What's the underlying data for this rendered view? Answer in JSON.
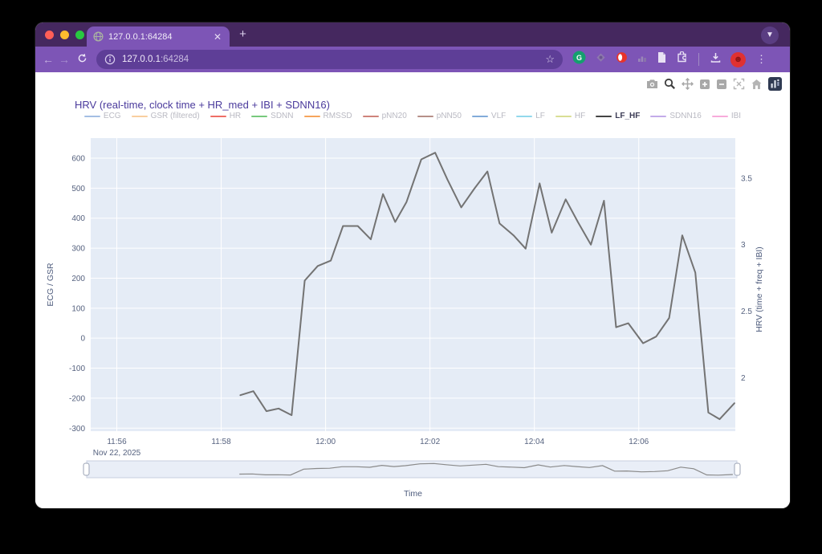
{
  "theme": {
    "chrome_dark": "#45285f",
    "chrome_light": "#7d55b6",
    "url_pill": "#5e3e97",
    "plot_bg": "#e5ecf6",
    "trace_color": "#737373",
    "title_color": "#4a3a9c",
    "axis_text_color": "#56627f",
    "traffic_lights": [
      "#ff5f57",
      "#febc2e",
      "#28c840"
    ]
  },
  "browser": {
    "tab_title": "127.0.0.1:64284",
    "url_host": "127.0.0.1",
    "url_port": ":64284",
    "window_buttons": [
      "close",
      "minimize",
      "zoom"
    ],
    "nav_icons": [
      "back-arrow",
      "forward-arrow",
      "reload"
    ],
    "url_icons": [
      "info-icon",
      "bookmark-star-icon"
    ],
    "extension_icons": [
      "grammarly-icon",
      "diamond-icon",
      "pin-icon",
      "chart-icon",
      "document-icon",
      "extensions-puzzle-icon"
    ],
    "action_icons": [
      "download-icon",
      "profile-avatar",
      "menu-kebab-icon"
    ],
    "tab_icons": [
      "globe-favicon",
      "tab-close-icon",
      "new-tab-plus-icon",
      "tab-search-chevron-icon"
    ]
  },
  "modebar_icons": [
    "camera-icon",
    "zoom-icon",
    "pan-icon",
    "zoom-in-icon",
    "zoom-out-icon",
    "autoscale-icon",
    "reset-home-icon",
    "plotly-logo"
  ],
  "chart_data": {
    "type": "line",
    "title": "HRV (real-time, clock time + HR_med + IBI + SDNN16)",
    "xlabel": "Time",
    "x_date_label": "Nov 22, 2025",
    "ylabel_left": "ECG / GSR",
    "ylabel_right": "HRV (time + freq + IBI)",
    "grid": true,
    "legend_position": "top",
    "rangeslider": true,
    "x_ticks": [
      {
        "t": 0,
        "label": "11:56"
      },
      {
        "t": 120,
        "label": "11:58"
      },
      {
        "t": 240,
        "label": "12:00"
      },
      {
        "t": 360,
        "label": "12:02"
      },
      {
        "t": 480,
        "label": "12:04"
      },
      {
        "t": 600,
        "label": "12:06"
      }
    ],
    "x_range_seconds": [
      -30,
      711
    ],
    "x_time_origin": "11:56:00",
    "yleft_ticks": [
      600,
      500,
      400,
      300,
      200,
      100,
      0,
      -100,
      -200,
      -300
    ],
    "yleft_range": [
      -310,
      667
    ],
    "yright_ticks": [
      3.5,
      3,
      2.5,
      2
    ],
    "yright_range": [
      1.6,
      3.8
    ],
    "series": [
      {
        "name": "ECG",
        "color": "#a4bee4",
        "visible": false
      },
      {
        "name": "GSR (filtered)",
        "color": "#f9cf9f",
        "visible": false
      },
      {
        "name": "HR",
        "color": "#ef6e66",
        "visible": false
      },
      {
        "name": "SDNN",
        "color": "#77c97d",
        "visible": false
      },
      {
        "name": "RMSSD",
        "color": "#f6a55c",
        "visible": false
      },
      {
        "name": "pNN20",
        "color": "#cf837b",
        "visible": false
      },
      {
        "name": "pNN50",
        "color": "#b69089",
        "visible": false
      },
      {
        "name": "VLF",
        "color": "#82abda",
        "visible": false
      },
      {
        "name": "LF",
        "color": "#93d9ec",
        "visible": false
      },
      {
        "name": "HF",
        "color": "#d9de94",
        "visible": false
      },
      {
        "name": "LF_HF",
        "color": "#444444",
        "visible": true,
        "axis": "right",
        "points": [
          [
            142,
            1.87
          ],
          [
            157,
            1.9
          ],
          [
            172,
            1.75
          ],
          [
            186,
            1.77
          ],
          [
            201,
            1.72
          ],
          [
            216,
            2.73
          ],
          [
            231,
            2.84
          ],
          [
            246,
            2.88
          ],
          [
            260,
            3.14
          ],
          [
            277,
            3.14
          ],
          [
            292,
            3.04
          ],
          [
            306,
            3.38
          ],
          [
            320,
            3.17
          ],
          [
            333,
            3.32
          ],
          [
            350,
            3.64
          ],
          [
            366,
            3.69
          ],
          [
            380,
            3.49
          ],
          [
            396,
            3.28
          ],
          [
            411,
            3.42
          ],
          [
            426,
            3.55
          ],
          [
            440,
            3.16
          ],
          [
            456,
            3.07
          ],
          [
            470,
            2.97
          ],
          [
            486,
            3.46
          ],
          [
            500,
            3.09
          ],
          [
            516,
            3.34
          ],
          [
            530,
            3.17
          ],
          [
            545,
            3.0
          ],
          [
            560,
            3.33
          ],
          [
            574,
            2.38
          ],
          [
            588,
            2.41
          ],
          [
            605,
            2.26
          ],
          [
            620,
            2.31
          ],
          [
            635,
            2.45
          ],
          [
            650,
            3.07
          ],
          [
            665,
            2.79
          ],
          [
            680,
            1.74
          ],
          [
            693,
            1.69
          ],
          [
            710,
            1.81
          ]
        ]
      },
      {
        "name": "SDNN16",
        "color": "#c3abe9",
        "visible": false
      },
      {
        "name": "IBI",
        "color": "#f8abdb",
        "visible": false
      }
    ]
  }
}
